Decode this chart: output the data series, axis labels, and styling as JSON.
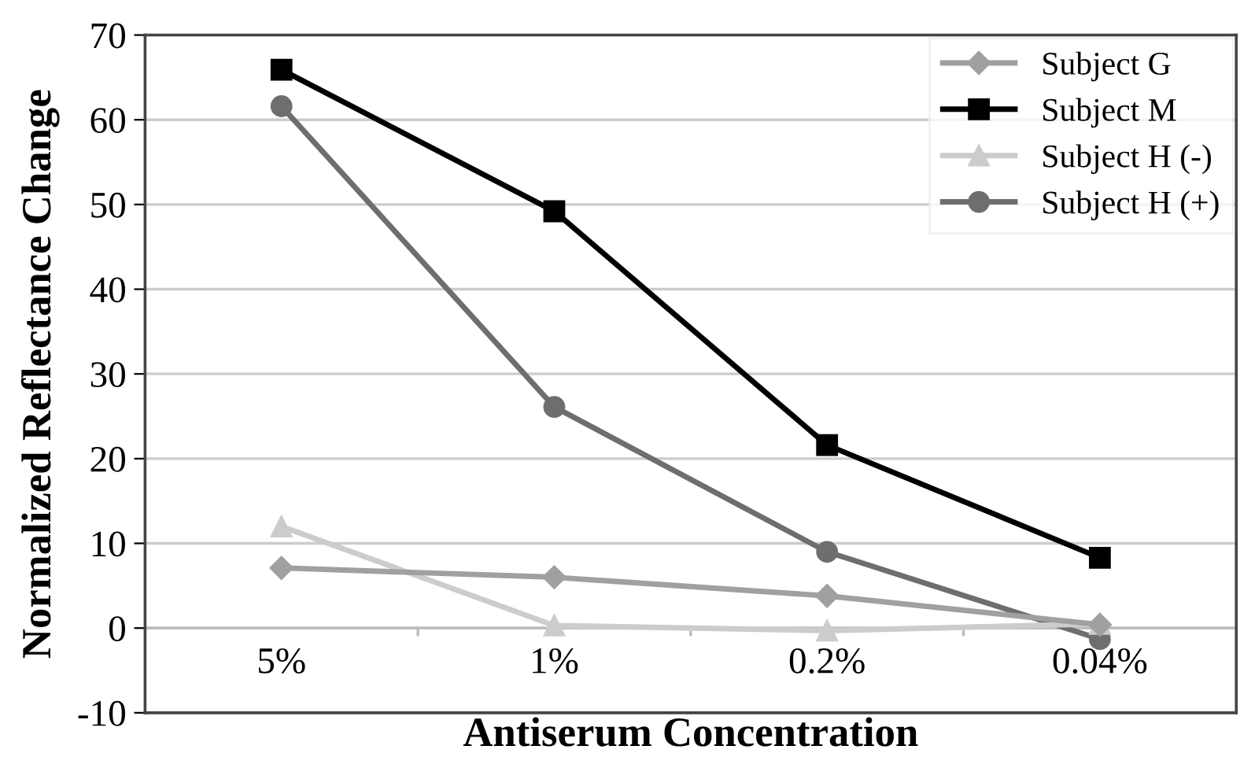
{
  "chart_data": {
    "type": "line",
    "xlabel": "Antiserum Concentration",
    "ylabel": "Normalized Reflectance Change",
    "categories": [
      "5%",
      "1%",
      "0.2%",
      "0.04%"
    ],
    "series": [
      {
        "name": "Subject G",
        "color": "#a0a0a0",
        "marker": "diamond",
        "values": [
          7.1,
          6.0,
          3.8,
          0.4
        ]
      },
      {
        "name": "Subject M",
        "color": "#000000",
        "marker": "square",
        "values": [
          65.9,
          49.2,
          21.6,
          8.3
        ]
      },
      {
        "name": "Subject H (-)",
        "color": "#cccccc",
        "marker": "triangle",
        "values": [
          12.0,
          0.3,
          -0.3,
          0.5
        ]
      },
      {
        "name": "Subject H (+)",
        "color": "#6e6e6e",
        "marker": "circle",
        "values": [
          61.6,
          26.1,
          9.0,
          -1.3
        ]
      }
    ],
    "ylim": [
      -10,
      70
    ],
    "yticks": [
      -10,
      0,
      10,
      20,
      30,
      40,
      50,
      60,
      70
    ],
    "grid": "y",
    "legend": "top right",
    "line_style": "solid"
  }
}
